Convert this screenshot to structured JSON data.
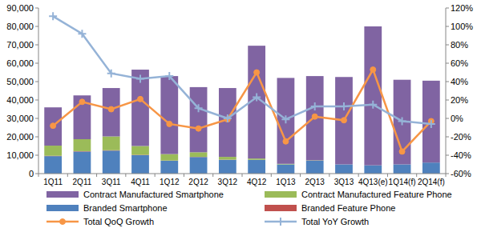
{
  "chart_data": {
    "type": "bar",
    "stacked": true,
    "grid": false,
    "legend": "bottom",
    "categories": [
      "1Q11",
      "2Q11",
      "3Q11",
      "4Q11",
      "1Q12",
      "2Q12",
      "3Q12",
      "4Q12",
      "1Q13",
      "2Q13",
      "3Q13",
      "4Q13(e)",
      "1Q14(f)",
      "2Q14(f)"
    ],
    "ylim": [
      0,
      90000
    ],
    "yticks": [
      0,
      {
        "value": 10000,
        "label": "10,000"
      },
      {
        "value": 20000,
        "label": "20,000"
      },
      {
        "value": 30000,
        "label": "30,000"
      },
      {
        "value": 40000,
        "label": "40,000"
      },
      {
        "value": 50000,
        "label": "50,000"
      },
      {
        "value": 60000,
        "label": "60,000"
      },
      {
        "value": 70000,
        "label": "70,000"
      },
      {
        "value": 80000,
        "label": "80,000"
      },
      {
        "value": 90000,
        "label": "90,000"
      }
    ],
    "y2lim": [
      -60,
      120
    ],
    "y2ticks": [
      {
        "value": -60,
        "label": "-60%"
      },
      {
        "value": -40,
        "label": "-40%"
      },
      {
        "value": -20,
        "label": "-20%"
      },
      {
        "value": 0,
        "label": "0%"
      },
      {
        "value": 20,
        "label": "20%"
      },
      {
        "value": 40,
        "label": "40%"
      },
      {
        "value": 60,
        "label": "60%"
      },
      {
        "value": 80,
        "label": "80%"
      },
      {
        "value": 100,
        "label": "100%"
      },
      {
        "value": 120,
        "label": "120%"
      }
    ],
    "series": [
      {
        "name": "Branded Smartphone",
        "type": "bar",
        "color": "#4f81bd",
        "values": [
          9500,
          12000,
          12500,
          10000,
          7000,
          9000,
          7500,
          7500,
          5000,
          7000,
          5000,
          4500,
          5000,
          6000
        ]
      },
      {
        "name": "Branded Feature Phone",
        "type": "bar",
        "color": "#c0504d",
        "values": [
          200,
          200,
          200,
          200,
          100,
          100,
          100,
          0,
          0,
          0,
          0,
          0,
          0,
          0
        ]
      },
      {
        "name": "Contract Manufactured Feature Phone",
        "type": "bar",
        "color": "#9bbb59",
        "values": [
          5500,
          6500,
          7500,
          4800,
          3500,
          2500,
          1500,
          700,
          300,
          200,
          0,
          0,
          0,
          0
        ]
      },
      {
        "name": "Contract Manufactured Smartphone",
        "type": "bar",
        "color": "#8064a2",
        "values": [
          20800,
          23800,
          26300,
          41500,
          42400,
          35400,
          37400,
          61300,
          46700,
          45800,
          47500,
          75500,
          46000,
          44500
        ]
      },
      {
        "name": "Total QoQ Growth",
        "type": "line",
        "axis": "y2",
        "color": "#f79646",
        "marker": "circle",
        "values": [
          -8,
          18,
          10,
          21,
          -6,
          -11,
          -1,
          50,
          -25,
          2,
          -2,
          53,
          -36,
          -3
        ]
      },
      {
        "name": "Total YoY Growth",
        "type": "line",
        "axis": "y2",
        "color": "#95b3d7",
        "marker": "cross",
        "values": [
          111,
          92,
          49,
          43,
          46,
          11,
          0,
          23,
          -1,
          13,
          13,
          15,
          -3,
          -6
        ]
      }
    ]
  }
}
